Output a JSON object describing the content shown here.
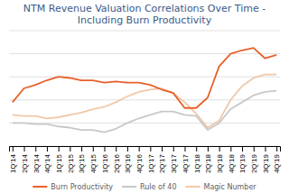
{
  "chart_data": {
    "type": "line",
    "title": "NTM Revenue Valuation Correlations Over Time -",
    "subtitle": "Including Burn Productivity",
    "categories": [
      "1Q'14",
      "2Q'14",
      "3Q'14",
      "4Q'14",
      "1Q'15",
      "2Q'15",
      "3Q'15",
      "4Q'15",
      "1Q'16",
      "2Q'16",
      "3Q'16",
      "4Q'16",
      "1Q'17",
      "2Q'17",
      "3Q'17",
      "4Q'17",
      "1Q'18",
      "2Q'18",
      "3Q'18",
      "4Q'18",
      "1Q'19",
      "2Q'19",
      "3Q'19",
      "4Q'19"
    ],
    "series": [
      {
        "name": "Burn Productivity",
        "color": "#e8602a",
        "values": [
          0.38,
          0.5,
          0.53,
          0.57,
          0.6,
          0.59,
          0.57,
          0.57,
          0.55,
          0.56,
          0.55,
          0.55,
          0.53,
          0.49,
          0.46,
          0.33,
          0.33,
          0.42,
          0.69,
          0.8,
          0.83,
          0.85,
          0.76,
          0.79
        ]
      },
      {
        "name": "Rule of 40",
        "color": "#c8c8c8",
        "values": [
          0.2,
          0.2,
          0.19,
          0.19,
          0.17,
          0.16,
          0.14,
          0.14,
          0.12,
          0.15,
          0.2,
          0.24,
          0.27,
          0.3,
          0.3,
          0.27,
          0.26,
          0.14,
          0.2,
          0.32,
          0.38,
          0.44,
          0.47,
          0.48
        ]
      },
      {
        "name": "Magic Number",
        "color": "#f0c8a8",
        "values": [
          0.27,
          0.26,
          0.26,
          0.24,
          0.25,
          0.27,
          0.29,
          0.32,
          0.34,
          0.38,
          0.43,
          0.47,
          0.49,
          0.5,
          0.46,
          0.38,
          0.28,
          0.16,
          0.22,
          0.4,
          0.52,
          0.59,
          0.62,
          0.62
        ]
      }
    ],
    "ylim": [
      0,
      1
    ],
    "yticks": [
      0,
      0.2,
      0.4,
      0.6,
      0.8,
      1
    ],
    "grid": true,
    "tick_labels": "x",
    "legend": "bottom"
  }
}
